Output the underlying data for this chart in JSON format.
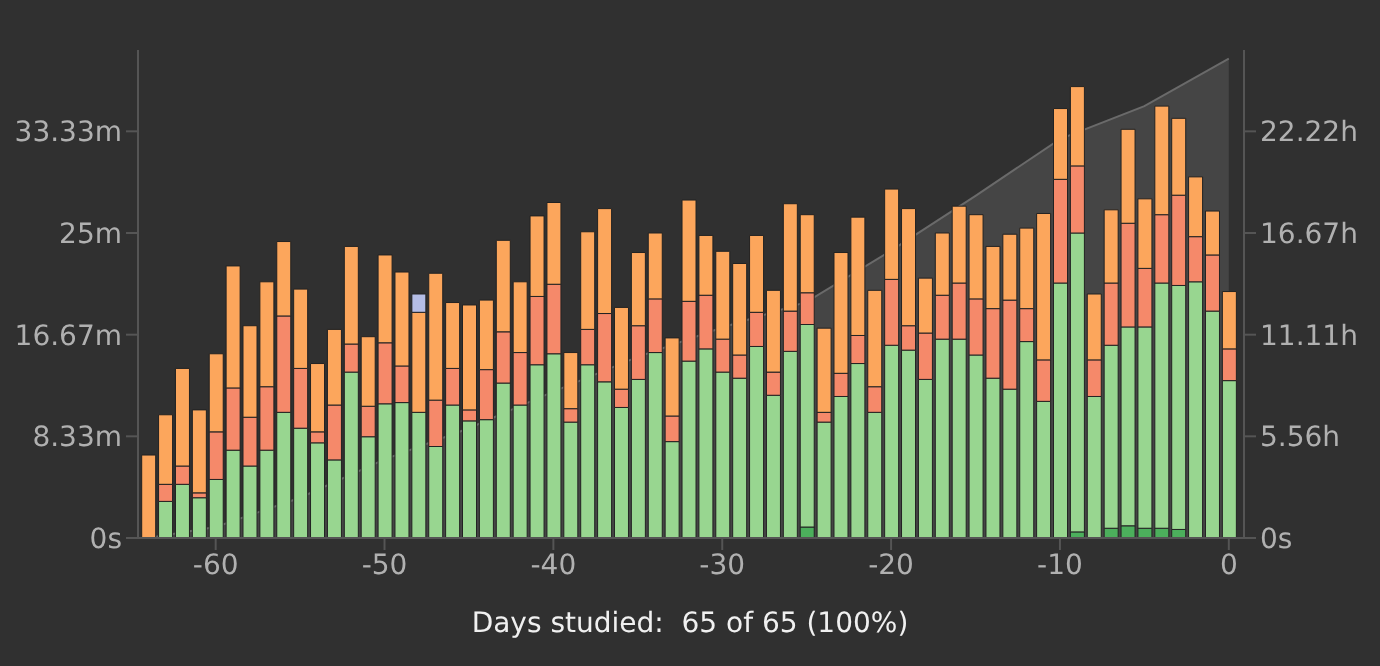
{
  "chart_data": {
    "type": "bar",
    "stacked": true,
    "xlabel": "Days studied:  65 of 65 (100%)",
    "x": [
      -64,
      -63,
      -62,
      -61,
      -60,
      -59,
      -58,
      -57,
      -56,
      -55,
      -54,
      -53,
      -52,
      -51,
      -50,
      -49,
      -48,
      -47,
      -46,
      -45,
      -44,
      -43,
      -42,
      -41,
      -40,
      -39,
      -38,
      -37,
      -36,
      -35,
      -34,
      -33,
      -32,
      -31,
      -30,
      -29,
      -28,
      -27,
      -26,
      -25,
      -24,
      -23,
      -22,
      -21,
      -20,
      -19,
      -18,
      -17,
      -16,
      -15,
      -14,
      -13,
      -12,
      -11,
      -10,
      -9,
      -8,
      -7,
      -6,
      -5,
      -4,
      -3,
      -2,
      -1,
      0
    ],
    "xlim": [
      -64.6,
      0.9
    ],
    "xticks": [
      -60,
      -50,
      -40,
      -30,
      -20,
      -10,
      0
    ],
    "ylim": [
      0,
      40
    ],
    "yticks": [
      {
        "value": 0,
        "label": "0s"
      },
      {
        "value": 8.333,
        "label": "8.33m"
      },
      {
        "value": 16.667,
        "label": "16.67m"
      },
      {
        "value": 25,
        "label": "25m"
      },
      {
        "value": 33.333,
        "label": "33.33m"
      }
    ],
    "y2lim": [
      0,
      26.667
    ],
    "y2ticks": [
      {
        "value": 0,
        "label": "0s"
      },
      {
        "value": 5.556,
        "label": "5.56h"
      },
      {
        "value": 11.111,
        "label": "11.11h"
      },
      {
        "value": 16.667,
        "label": "16.67h"
      },
      {
        "value": 22.222,
        "label": "22.22h"
      }
    ],
    "series": [
      {
        "color": "#4caf5c",
        "values": [
          0,
          0,
          0,
          0,
          0,
          0,
          0,
          0,
          0,
          0,
          0,
          0,
          0,
          0,
          0,
          0,
          0,
          0,
          0,
          0,
          0,
          0,
          0,
          0,
          0,
          0,
          0,
          0,
          0,
          0,
          0,
          0,
          0,
          0,
          0,
          0,
          0,
          0,
          0,
          0.9,
          0,
          0,
          0,
          0,
          0,
          0,
          0,
          0,
          0,
          0,
          0,
          0,
          0,
          0,
          0,
          0.5,
          0,
          0.8,
          1.0,
          0.8,
          0.8,
          0.7,
          0,
          0,
          null
        ]
      },
      {
        "color": "#98d690",
        "values": [
          0,
          3.0,
          4.4,
          3.3,
          4.8,
          7.2,
          5.9,
          7.2,
          10.3,
          9.0,
          7.8,
          6.4,
          13.6,
          8.3,
          11.0,
          11.1,
          10.3,
          7.5,
          10.9,
          9.6,
          9.7,
          12.7,
          10.9,
          14.2,
          15.1,
          9.5,
          14.2,
          12.8,
          10.7,
          13.0,
          15.2,
          7.9,
          14.5,
          15.5,
          13.6,
          13.1,
          15.7,
          11.7,
          15.3,
          16.6,
          9.5,
          11.6,
          14.3,
          10.3,
          15.8,
          15.4,
          13.0,
          16.3,
          16.3,
          15.0,
          13.1,
          12.2,
          16.1,
          11.2,
          20.9,
          24.5,
          11.6,
          15.0,
          16.3,
          16.5,
          20.1,
          20.0,
          21.0,
          18.6,
          12.9
        ]
      },
      {
        "color": "#f5896a",
        "values": [
          0,
          1.4,
          1.5,
          0.4,
          3.9,
          5.1,
          4.0,
          5.2,
          7.9,
          4.9,
          0.9,
          4.5,
          2.3,
          2.5,
          5.0,
          3.0,
          0,
          3.8,
          3.0,
          0.9,
          4.1,
          4.2,
          4.3,
          5.6,
          5.7,
          1.1,
          2.9,
          5.6,
          1.5,
          4.4,
          4.4,
          2.1,
          4.9,
          4.4,
          2.7,
          1.9,
          2.8,
          1.9,
          3.3,
          2.6,
          0.8,
          1.9,
          2.3,
          2.1,
          5.4,
          2.0,
          3.8,
          3.6,
          4.6,
          4.6,
          5.7,
          7.3,
          2.7,
          3.4,
          8.5,
          5.5,
          3.0,
          5.1,
          8.5,
          4.8,
          5.6,
          7.4,
          3.7,
          4.6,
          2.6
        ]
      },
      {
        "color": "#fca65c",
        "values": [
          6.8,
          5.7,
          8.0,
          6.8,
          6.4,
          10.0,
          7.5,
          8.6,
          6.1,
          6.5,
          5.6,
          6.2,
          8.0,
          5.7,
          7.2,
          7.7,
          8.2,
          10.4,
          5.4,
          8.6,
          5.7,
          7.5,
          5.8,
          6.6,
          6.7,
          4.6,
          8.0,
          8.6,
          6.7,
          6.0,
          5.4,
          6.4,
          8.3,
          4.9,
          7.2,
          7.5,
          6.3,
          6.7,
          8.8,
          6.4,
          6.9,
          9.9,
          9.7,
          7.9,
          7.4,
          9.6,
          4.5,
          5.1,
          6.3,
          6.9,
          5.1,
          5.4,
          6.6,
          12.0,
          5.8,
          6.5,
          5.4,
          6.0,
          7.7,
          5.7,
          8.9,
          6.3,
          4.9,
          3.6,
          4.7
        ]
      },
      {
        "color": "#b4bde6",
        "values": [
          0,
          0,
          0,
          0,
          0,
          0,
          0,
          0,
          0,
          0,
          0,
          0,
          0,
          0,
          0,
          0,
          1.5,
          0,
          0,
          0,
          0,
          0,
          0,
          0,
          0,
          0,
          0,
          0,
          0,
          0,
          0,
          0,
          0,
          0,
          0,
          0,
          0,
          0,
          0,
          0,
          0,
          0,
          0,
          0,
          0,
          0,
          0,
          0,
          0,
          0,
          0,
          0,
          0,
          0,
          0,
          0,
          0,
          0,
          0,
          0,
          0,
          0,
          0,
          0,
          0
        ]
      },
      {
        "type": "area",
        "axis": "y2",
        "color": "#6a6a6a",
        "x": [
          -64,
          -60,
          -55,
          -50,
          -45,
          -40,
          -35,
          -30,
          -25,
          -20,
          -15,
          -10,
          -5,
          0
        ],
        "values": [
          0,
          0.6,
          2.2,
          4.3,
          6.0,
          8.0,
          9.9,
          11.5,
          12.9,
          15.7,
          18.7,
          21.8,
          23.6,
          26.2
        ]
      }
    ]
  }
}
